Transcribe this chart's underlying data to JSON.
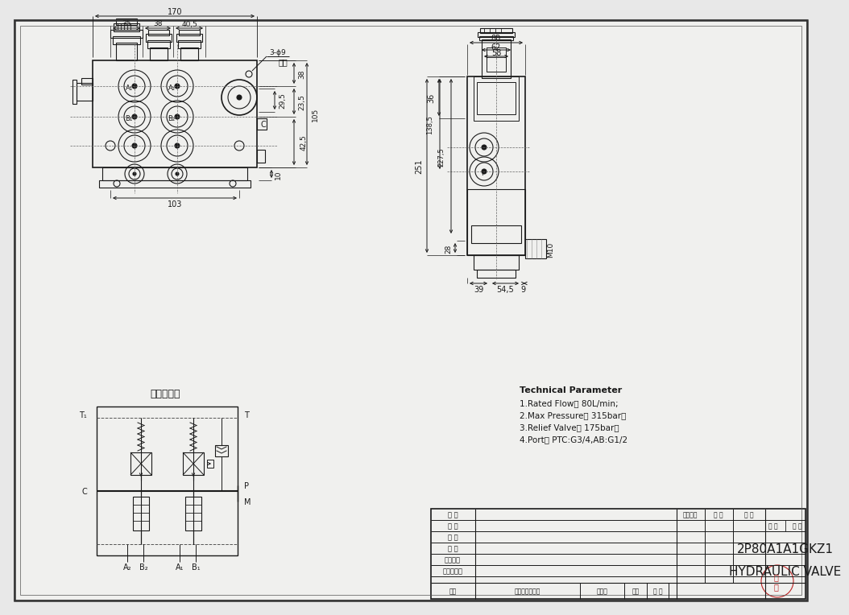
{
  "bg_color": "#e8e8e8",
  "paper_color": "#f0f0ee",
  "line_color": "#1a1a1a",
  "title": "2P80A1A1GKZ1",
  "subtitle": "HYDRAULIC VALVE",
  "tech_params": [
    "Technical Parameter",
    "1.Rated Flow： 80L/min;",
    "2.Max Pressure： 315bar，",
    "3.Relief Valve： 175bar；",
    "4.Port： PTC:G3/4,AB:G1/2"
  ],
  "hydraulic_label": "液压原理图"
}
